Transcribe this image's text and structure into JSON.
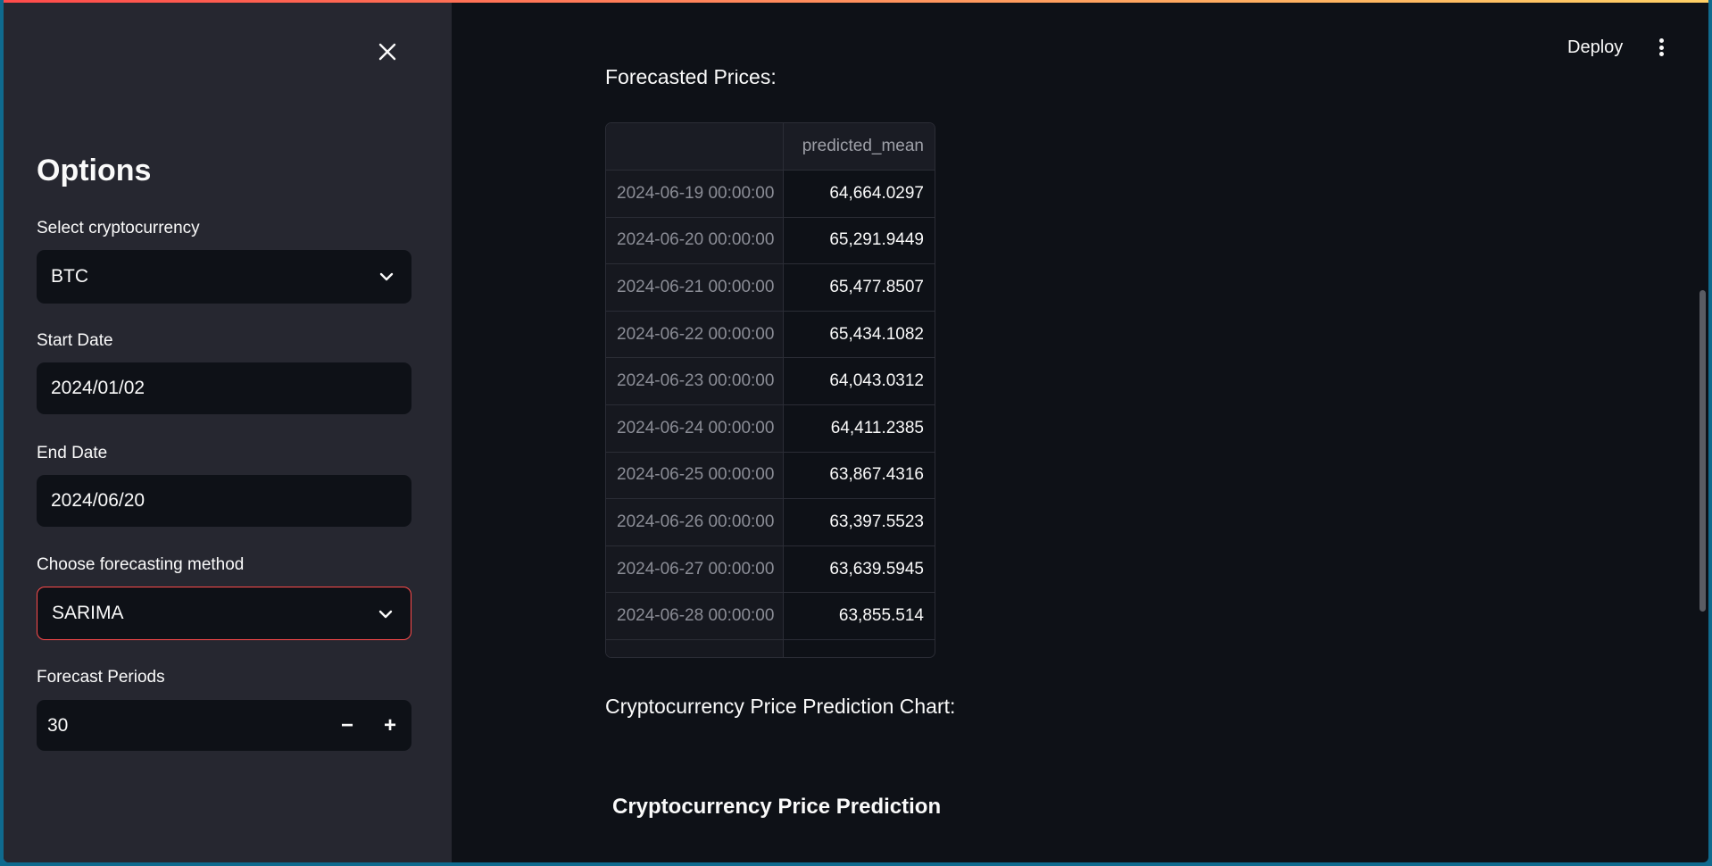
{
  "sidebar": {
    "title": "Options",
    "crypto_label": "Select cryptocurrency",
    "crypto_value": "BTC",
    "start_label": "Start Date",
    "start_value": "2024/01/02",
    "end_label": "End Date",
    "end_value": "2024/06/20",
    "method_label": "Choose forecasting method",
    "method_value": "SARIMA",
    "periods_label": "Forecast Periods",
    "periods_value": "30",
    "minus": "−",
    "plus": "+"
  },
  "header": {
    "deploy_label": "Deploy"
  },
  "main": {
    "forecast_title": "Forecasted Prices:",
    "chart_section_title": "Cryptocurrency Price Prediction Chart:",
    "chart_title": "Cryptocurrency Price Prediction",
    "table": {
      "column_header": "predicted_mean",
      "rows": [
        {
          "date": "2024-06-19 00:00:00",
          "value": "64,664.0297"
        },
        {
          "date": "2024-06-20 00:00:00",
          "value": "65,291.9449"
        },
        {
          "date": "2024-06-21 00:00:00",
          "value": "65,477.8507"
        },
        {
          "date": "2024-06-22 00:00:00",
          "value": "65,434.1082"
        },
        {
          "date": "2024-06-23 00:00:00",
          "value": "64,043.0312"
        },
        {
          "date": "2024-06-24 00:00:00",
          "value": "64,411.2385"
        },
        {
          "date": "2024-06-25 00:00:00",
          "value": "63,867.4316"
        },
        {
          "date": "2024-06-26 00:00:00",
          "value": "63,397.5523"
        },
        {
          "date": "2024-06-27 00:00:00",
          "value": "63,639.5945"
        },
        {
          "date": "2024-06-28 00:00:00",
          "value": "63,855.514"
        }
      ]
    }
  },
  "colors": {
    "accent": "#ff4b4b",
    "background": "#0e1117",
    "sidebar": "#262730"
  }
}
